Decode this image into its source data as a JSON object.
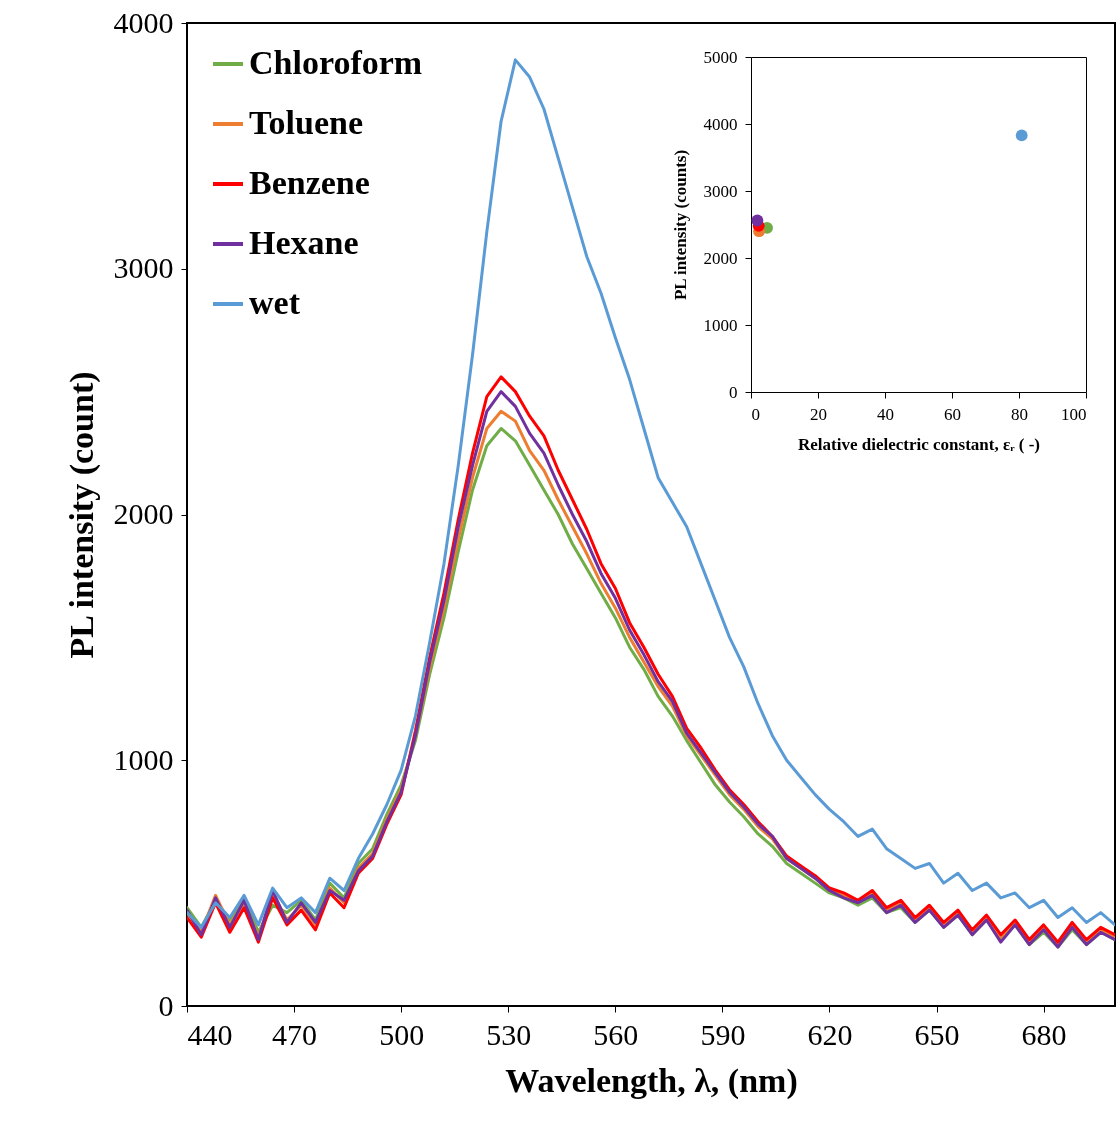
{
  "chart_data": [
    {
      "type": "line",
      "xlabel": "Wavelength, λ, (nm)",
      "ylabel": "PL intensity (count)",
      "x": [
        440,
        444,
        448,
        452,
        456,
        460,
        464,
        468,
        472,
        476,
        480,
        484,
        488,
        492,
        496,
        500,
        504,
        508,
        512,
        516,
        520,
        524,
        528,
        532,
        536,
        540,
        544,
        548,
        552,
        556,
        560,
        564,
        568,
        572,
        576,
        580,
        584,
        588,
        592,
        596,
        600,
        604,
        608,
        612,
        616,
        620,
        624,
        628,
        632,
        636,
        640,
        644,
        648,
        652,
        656,
        660,
        664,
        668,
        672,
        676,
        680,
        684,
        688,
        692,
        696,
        700
      ],
      "xlim": [
        440,
        700
      ],
      "xticks": [
        440,
        470,
        500,
        530,
        560,
        590,
        620,
        650,
        680
      ],
      "ylim": [
        0,
        4000
      ],
      "yticks": [
        0,
        1000,
        2000,
        3000,
        4000
      ],
      "grid": false,
      "legend": "top left",
      "marker": "none",
      "line_style": "solid",
      "series": [
        {
          "name": "Chloroform",
          "color": "#70ad47",
          "values": [
            400,
            320,
            430,
            350,
            440,
            300,
            410,
            380,
            430,
            350,
            500,
            440,
            580,
            640,
            780,
            900,
            1080,
            1350,
            1580,
            1850,
            2100,
            2280,
            2350,
            2300,
            2200,
            2100,
            2000,
            1880,
            1780,
            1680,
            1580,
            1460,
            1370,
            1260,
            1180,
            1080,
            990,
            900,
            830,
            770,
            700,
            650,
            580,
            540,
            500,
            460,
            440,
            410,
            440,
            380,
            400,
            340,
            390,
            320,
            370,
            290,
            350,
            270,
            330,
            250,
            300,
            240,
            310,
            250,
            300,
            270
          ]
        },
        {
          "name": "Toluene",
          "color": "#ed7d31",
          "values": [
            380,
            300,
            450,
            330,
            420,
            280,
            460,
            350,
            410,
            330,
            480,
            420,
            560,
            620,
            760,
            880,
            1100,
            1380,
            1620,
            1900,
            2150,
            2350,
            2420,
            2380,
            2260,
            2180,
            2060,
            1950,
            1840,
            1720,
            1620,
            1500,
            1400,
            1300,
            1220,
            1100,
            1020,
            940,
            860,
            800,
            730,
            680,
            600,
            560,
            520,
            470,
            450,
            420,
            460,
            390,
            420,
            350,
            400,
            330,
            380,
            300,
            360,
            280,
            340,
            260,
            320,
            250,
            330,
            260,
            310,
            280
          ]
        },
        {
          "name": "Benzene",
          "color": "#ff0000",
          "values": [
            360,
            280,
            420,
            300,
            400,
            260,
            440,
            330,
            390,
            310,
            460,
            400,
            540,
            600,
            740,
            860,
            1120,
            1420,
            1680,
            1980,
            2250,
            2480,
            2560,
            2500,
            2400,
            2320,
            2180,
            2060,
            1940,
            1800,
            1700,
            1560,
            1460,
            1350,
            1260,
            1130,
            1050,
            960,
            880,
            820,
            750,
            690,
            610,
            570,
            530,
            480,
            460,
            430,
            470,
            400,
            430,
            360,
            410,
            340,
            390,
            310,
            370,
            290,
            350,
            270,
            330,
            260,
            340,
            270,
            320,
            290
          ]
        },
        {
          "name": "Hexane",
          "color": "#7030a0",
          "values": [
            390,
            290,
            440,
            320,
            430,
            270,
            470,
            340,
            420,
            340,
            470,
            430,
            550,
            610,
            750,
            870,
            1100,
            1400,
            1650,
            1950,
            2200,
            2420,
            2500,
            2440,
            2330,
            2250,
            2120,
            2000,
            1890,
            1760,
            1660,
            1530,
            1430,
            1320,
            1240,
            1110,
            1030,
            950,
            870,
            810,
            740,
            690,
            600,
            560,
            520,
            470,
            440,
            420,
            450,
            380,
            410,
            340,
            390,
            320,
            370,
            290,
            350,
            260,
            330,
            250,
            310,
            240,
            320,
            250,
            300,
            270
          ]
        },
        {
          "name": "wet",
          "color": "#5b9bd5",
          "values": [
            380,
            320,
            420,
            360,
            450,
            330,
            480,
            400,
            440,
            380,
            520,
            470,
            600,
            700,
            820,
            960,
            1180,
            1480,
            1800,
            2200,
            2650,
            3150,
            3600,
            3850,
            3780,
            3650,
            3450,
            3250,
            3050,
            2900,
            2720,
            2550,
            2350,
            2150,
            2050,
            1950,
            1800,
            1650,
            1500,
            1380,
            1230,
            1100,
            1000,
            930,
            860,
            800,
            750,
            690,
            720,
            640,
            600,
            560,
            580,
            500,
            540,
            470,
            500,
            440,
            460,
            400,
            430,
            360,
            400,
            340,
            380,
            330
          ]
        }
      ]
    },
    {
      "type": "scatter",
      "xlabel": "Relative dielectric constant, εᵣ ( -)",
      "ylabel": "PL intensity  (counts)",
      "xlim": [
        0,
        100
      ],
      "xticks": [
        0,
        20,
        40,
        60,
        80,
        100
      ],
      "ylim": [
        0,
        5000
      ],
      "yticks": [
        0,
        1000,
        2000,
        3000,
        4000,
        5000
      ],
      "grid": false,
      "marker": "circle",
      "series": [
        {
          "color": "#70ad47",
          "x": [
            4.8
          ],
          "values": [
            2450
          ]
        },
        {
          "color": "#ed7d31",
          "x": [
            2.4
          ],
          "values": [
            2400
          ]
        },
        {
          "color": "#ff0000",
          "x": [
            2.3
          ],
          "values": [
            2480
          ]
        },
        {
          "color": "#7030a0",
          "x": [
            1.9
          ],
          "values": [
            2560
          ]
        },
        {
          "color": "#5b9bd5",
          "x": [
            80.8
          ],
          "values": [
            3830
          ]
        }
      ]
    }
  ]
}
